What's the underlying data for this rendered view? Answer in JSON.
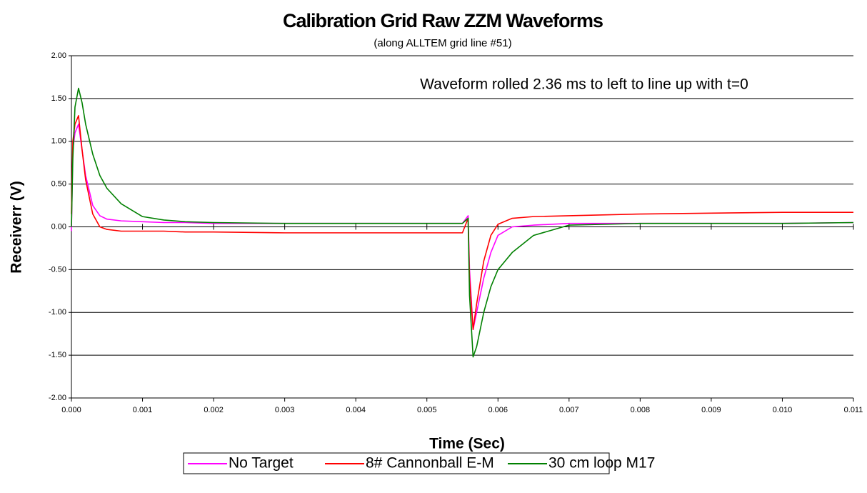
{
  "chart_data": {
    "type": "line",
    "title": "Calibration Grid Raw ZZM Waveforms",
    "subtitle": "(along ALLTEM grid line #51)",
    "annotation": "Waveform rolled 2.36 ms to left to line up with t=0",
    "x_label": "Time (Sec)",
    "y_label": "Receiverr (V)",
    "x": [
      0,
      2e-05,
      5e-05,
      0.0001,
      0.00015,
      0.0002,
      0.0003,
      0.0004,
      0.0005,
      0.0007,
      0.001,
      0.0013,
      0.0016,
      0.002,
      0.003,
      0.004,
      0.005,
      0.0055,
      0.00558,
      0.0056,
      0.00565,
      0.0057,
      0.0058,
      0.0059,
      0.006,
      0.0062,
      0.0065,
      0.007,
      0.008,
      0.009,
      0.01,
      0.011
    ],
    "series": [
      {
        "name": "No Target",
        "color": "#ff00ff",
        "values": [
          -0.05,
          0.9,
          1.1,
          1.2,
          0.9,
          0.6,
          0.25,
          0.13,
          0.09,
          0.07,
          0.06,
          0.05,
          0.05,
          0.04,
          0.04,
          0.04,
          0.04,
          0.04,
          0.13,
          -0.5,
          -1.2,
          -1.0,
          -0.6,
          -0.3,
          -0.1,
          0.0,
          0.02,
          0.04,
          0.04,
          0.04,
          0.04,
          0.05
        ]
      },
      {
        "name": "8# Cannonball E-M",
        "color": "#ff0000",
        "values": [
          0.15,
          1.0,
          1.2,
          1.3,
          0.9,
          0.55,
          0.15,
          0.0,
          -0.03,
          -0.05,
          -0.05,
          -0.05,
          -0.06,
          -0.06,
          -0.07,
          -0.07,
          -0.07,
          -0.07,
          0.1,
          -0.6,
          -1.2,
          -0.9,
          -0.4,
          -0.1,
          0.03,
          0.1,
          0.12,
          0.13,
          0.15,
          0.16,
          0.17,
          0.17
        ]
      },
      {
        "name": "30 cm loop M17",
        "color": "#008000",
        "values": [
          0.0,
          0.8,
          1.4,
          1.62,
          1.45,
          1.2,
          0.85,
          0.6,
          0.45,
          0.27,
          0.12,
          0.08,
          0.06,
          0.05,
          0.04,
          0.04,
          0.04,
          0.04,
          0.1,
          -0.8,
          -1.52,
          -1.4,
          -1.0,
          -0.7,
          -0.5,
          -0.3,
          -0.1,
          0.02,
          0.04,
          0.04,
          0.04,
          0.05
        ]
      }
    ],
    "xlim": [
      0,
      0.011
    ],
    "xticks": [
      {
        "value": 0,
        "label": "0.000"
      },
      {
        "value": 0.001,
        "label": "0.001"
      },
      {
        "value": 0.002,
        "label": "0.002"
      },
      {
        "value": 0.003,
        "label": "0.003"
      },
      {
        "value": 0.004,
        "label": "0.004"
      },
      {
        "value": 0.005,
        "label": "0.005"
      },
      {
        "value": 0.006,
        "label": "0.006"
      },
      {
        "value": 0.007,
        "label": "0.007"
      },
      {
        "value": 0.008,
        "label": "0.008"
      },
      {
        "value": 0.009,
        "label": "0.009"
      },
      {
        "value": 0.01,
        "label": "0.010"
      },
      {
        "value": 0.011,
        "label": "0.011"
      }
    ],
    "ylim": [
      -2,
      2
    ],
    "yticks": [
      {
        "value": -2,
        "label": "-2.00"
      },
      {
        "value": -1.5,
        "label": "-1.50"
      },
      {
        "value": -1,
        "label": "-1.00"
      },
      {
        "value": -0.5,
        "label": "-0.50"
      },
      {
        "value": 0,
        "label": "0.00"
      },
      {
        "value": 0.5,
        "label": "0.50"
      },
      {
        "value": 1,
        "label": "1.00"
      },
      {
        "value": 1.5,
        "label": "1.50"
      },
      {
        "value": 2,
        "label": "2.00"
      }
    ],
    "grid": true,
    "legend": "bottom"
  }
}
